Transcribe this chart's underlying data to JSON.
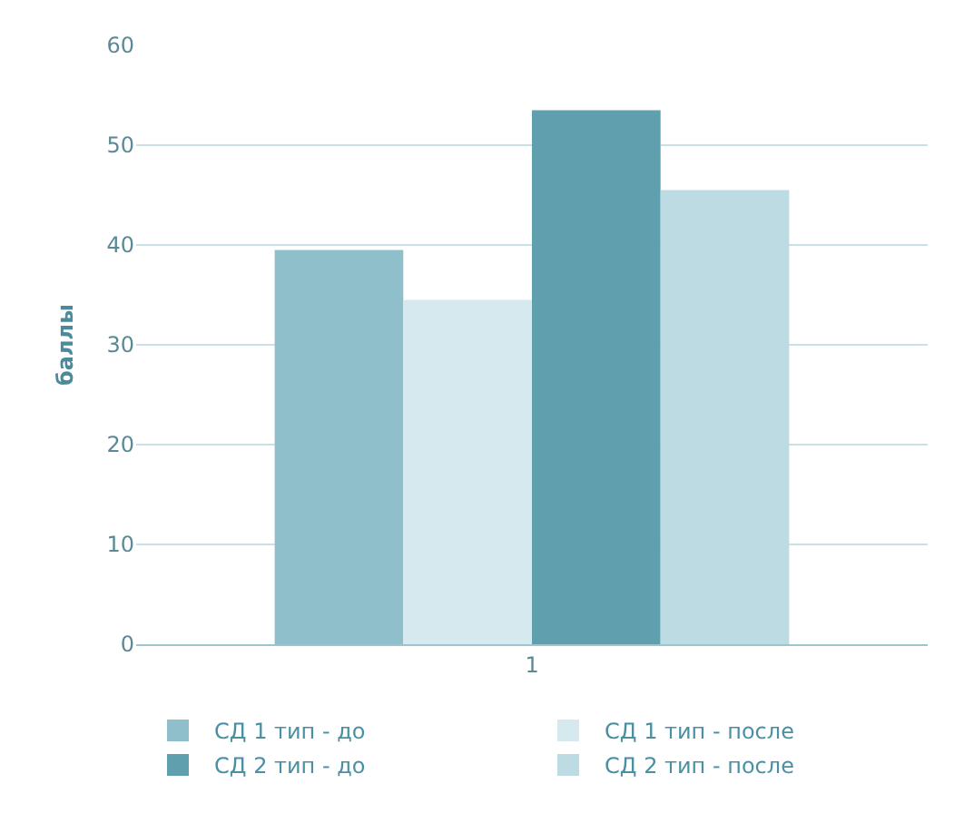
{
  "chart_data": {
    "type": "bar",
    "ylabel": "баллы",
    "categories": [
      "1"
    ],
    "series": [
      {
        "name": "СД 1 тип - до",
        "color": "#8fbfcb",
        "values": [
          39.5
        ]
      },
      {
        "name": "СД 1 тип - после",
        "color": "#d6e9ef",
        "values": [
          34.5
        ]
      },
      {
        "name": "СД 2 тип - до",
        "color": "#5f9fae",
        "values": [
          53.5
        ]
      },
      {
        "name": "СД 2 тип - после",
        "color": "#bcdbe3",
        "values": [
          45.5
        ]
      }
    ],
    "ylim": [
      0,
      60
    ],
    "yticks": [
      0,
      10,
      20,
      30,
      40,
      50,
      60
    ],
    "grid": "y",
    "legend": "bottom"
  }
}
